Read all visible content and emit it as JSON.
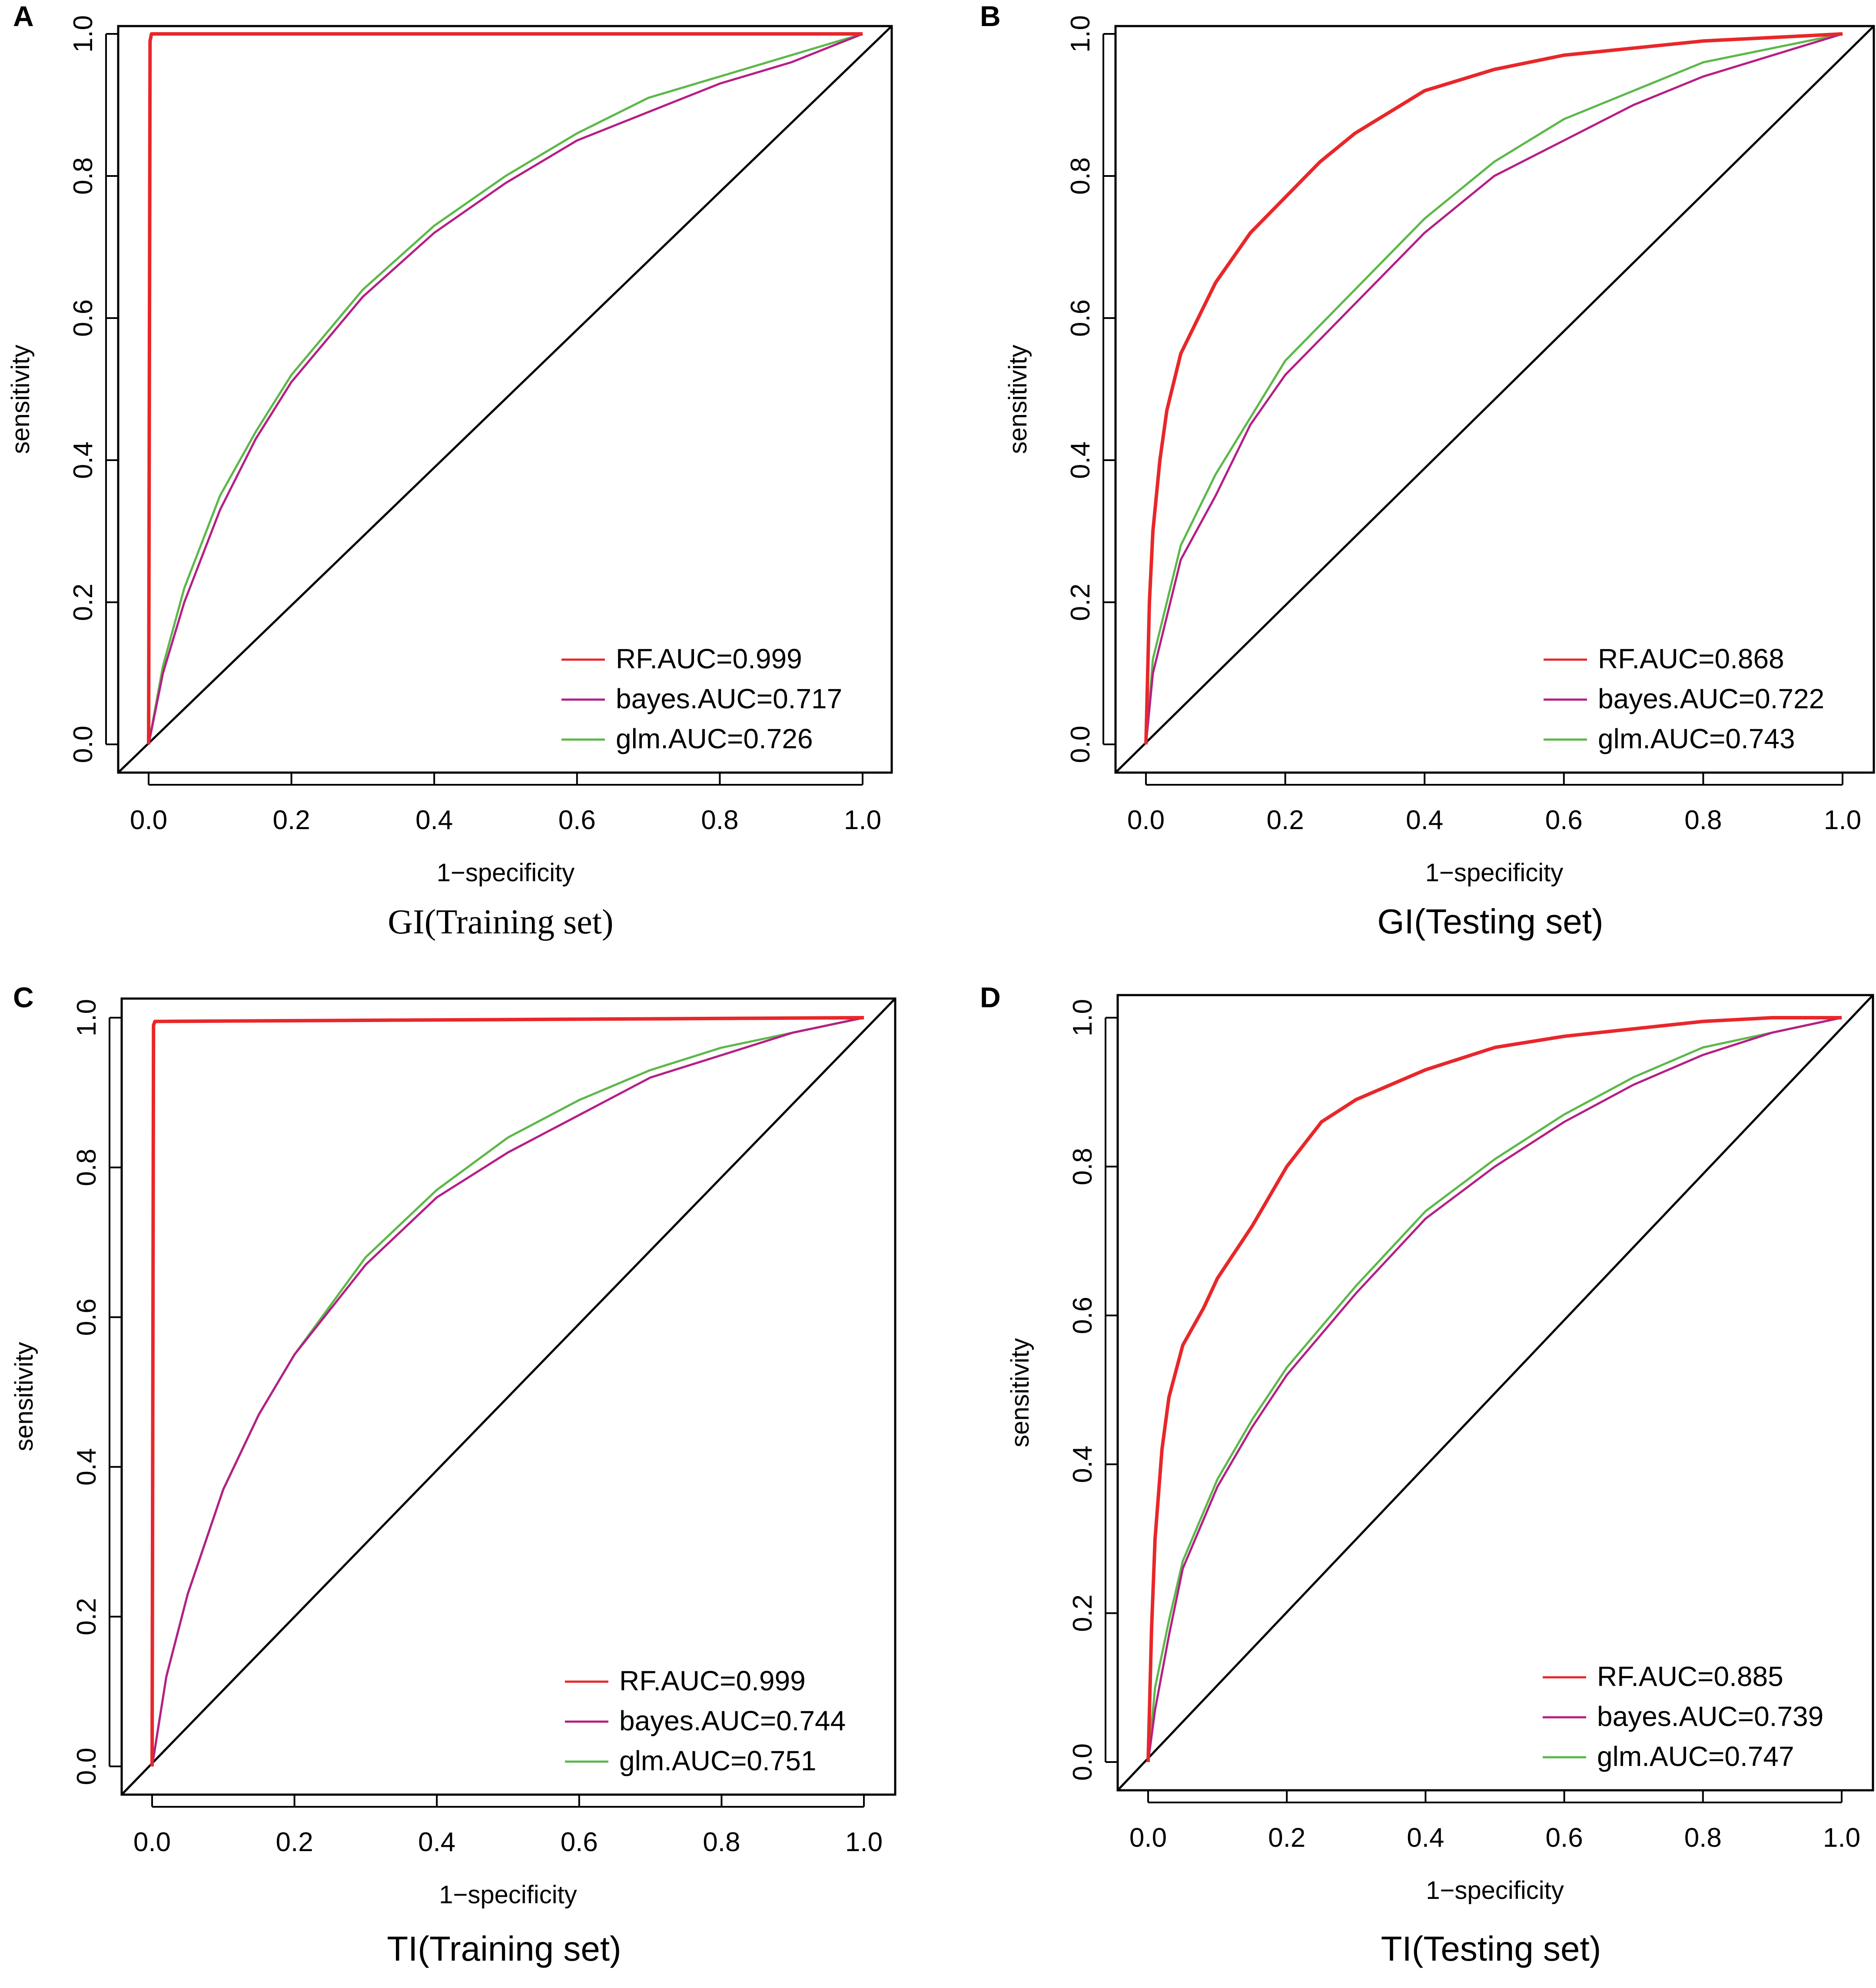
{
  "figure": {
    "colors": {
      "rf": "#e8272a",
      "bayes": "#b51f86",
      "glm": "#5cb84a",
      "axis": "#000000"
    }
  },
  "chart_data": [
    {
      "type": "line",
      "panel_letter": "A",
      "title": "GI(Training set)",
      "xlabel": "1−specificity",
      "ylabel": "sensitivity",
      "xlim": [
        0,
        1
      ],
      "ylim": [
        0,
        1
      ],
      "xticks": [
        "0.0",
        "0.2",
        "0.4",
        "0.6",
        "0.8",
        "1.0"
      ],
      "yticks": [
        "0.0",
        "0.2",
        "0.4",
        "0.6",
        "0.8",
        "1.0"
      ],
      "legend_position": "bottom-right",
      "series": [
        {
          "key": "rf",
          "name": "RF.AUC=0.999",
          "color": "#e8272a",
          "x": [
            0,
            0.002,
            0.004,
            1
          ],
          "y": [
            0,
            0.99,
            1,
            1
          ]
        },
        {
          "key": "bayes",
          "name": "bayes.AUC=0.717",
          "color": "#b51f86",
          "x": [
            0,
            0.02,
            0.05,
            0.1,
            0.15,
            0.2,
            0.3,
            0.4,
            0.5,
            0.6,
            0.7,
            0.8,
            0.9,
            1
          ],
          "y": [
            0,
            0.1,
            0.2,
            0.33,
            0.43,
            0.51,
            0.63,
            0.72,
            0.79,
            0.85,
            0.89,
            0.93,
            0.96,
            1
          ]
        },
        {
          "key": "glm",
          "name": "glm.AUC=0.726",
          "color": "#5cb84a",
          "x": [
            0,
            0.02,
            0.05,
            0.1,
            0.15,
            0.2,
            0.3,
            0.4,
            0.5,
            0.6,
            0.7,
            0.8,
            0.9,
            1
          ],
          "y": [
            0,
            0.11,
            0.22,
            0.35,
            0.44,
            0.52,
            0.64,
            0.73,
            0.8,
            0.86,
            0.91,
            0.94,
            0.97,
            1
          ]
        }
      ]
    },
    {
      "type": "line",
      "panel_letter": "B",
      "title": "GI(Testing set)",
      "xlabel": "1−specificity",
      "ylabel": "sensitivity",
      "xlim": [
        0,
        1
      ],
      "ylim": [
        0,
        1
      ],
      "xticks": [
        "0.0",
        "0.2",
        "0.4",
        "0.6",
        "0.8",
        "1.0"
      ],
      "yticks": [
        "0.0",
        "0.2",
        "0.4",
        "0.6",
        "0.8",
        "1.0"
      ],
      "legend_position": "bottom-right",
      "series": [
        {
          "key": "rf",
          "name": "RF.AUC=0.868",
          "color": "#e8272a",
          "x": [
            0,
            0.005,
            0.01,
            0.02,
            0.03,
            0.05,
            0.08,
            0.1,
            0.15,
            0.2,
            0.25,
            0.3,
            0.4,
            0.5,
            0.6,
            0.7,
            0.8,
            0.9,
            1
          ],
          "y": [
            0,
            0.2,
            0.3,
            0.4,
            0.47,
            0.55,
            0.61,
            0.65,
            0.72,
            0.77,
            0.82,
            0.86,
            0.92,
            0.95,
            0.97,
            0.98,
            0.99,
            0.995,
            1
          ]
        },
        {
          "key": "bayes",
          "name": "bayes.AUC=0.722",
          "color": "#b51f86",
          "x": [
            0,
            0.01,
            0.03,
            0.05,
            0.1,
            0.15,
            0.2,
            0.3,
            0.4,
            0.5,
            0.6,
            0.7,
            0.8,
            0.9,
            1
          ],
          "y": [
            0,
            0.1,
            0.18,
            0.26,
            0.35,
            0.45,
            0.52,
            0.62,
            0.72,
            0.8,
            0.85,
            0.9,
            0.94,
            0.97,
            1
          ]
        },
        {
          "key": "glm",
          "name": "glm.AUC=0.743",
          "color": "#5cb84a",
          "x": [
            0,
            0.01,
            0.03,
            0.05,
            0.1,
            0.15,
            0.2,
            0.3,
            0.4,
            0.5,
            0.6,
            0.7,
            0.8,
            0.9,
            1
          ],
          "y": [
            0,
            0.12,
            0.2,
            0.28,
            0.38,
            0.46,
            0.54,
            0.64,
            0.74,
            0.82,
            0.88,
            0.92,
            0.96,
            0.98,
            1
          ]
        }
      ]
    },
    {
      "type": "line",
      "panel_letter": "C",
      "title": "TI(Training set)",
      "xlabel": "1−specificity",
      "ylabel": "sensitivity",
      "xlim": [
        0,
        1
      ],
      "ylim": [
        0,
        1
      ],
      "xticks": [
        "0.0",
        "0.2",
        "0.4",
        "0.6",
        "0.8",
        "1.0"
      ],
      "yticks": [
        "0.0",
        "0.2",
        "0.4",
        "0.6",
        "0.8",
        "1.0"
      ],
      "legend_position": "bottom-right",
      "series": [
        {
          "key": "rf",
          "name": "RF.AUC=0.999",
          "color": "#e8272a",
          "x": [
            0,
            0.002,
            0.004,
            1
          ],
          "y": [
            0,
            0.99,
            0.995,
            1
          ]
        },
        {
          "key": "bayes",
          "name": "bayes.AUC=0.744",
          "color": "#b51f86",
          "x": [
            0,
            0.02,
            0.05,
            0.1,
            0.15,
            0.2,
            0.3,
            0.4,
            0.5,
            0.6,
            0.7,
            0.8,
            0.9,
            1
          ],
          "y": [
            0,
            0.12,
            0.23,
            0.37,
            0.47,
            0.55,
            0.67,
            0.76,
            0.82,
            0.87,
            0.92,
            0.95,
            0.98,
            1
          ]
        },
        {
          "key": "glm",
          "name": "glm.AUC=0.751",
          "color": "#5cb84a",
          "x": [
            0,
            0.02,
            0.05,
            0.1,
            0.15,
            0.2,
            0.3,
            0.4,
            0.5,
            0.6,
            0.7,
            0.8,
            0.9,
            1
          ],
          "y": [
            0,
            0.12,
            0.23,
            0.37,
            0.47,
            0.55,
            0.68,
            0.77,
            0.84,
            0.89,
            0.93,
            0.96,
            0.98,
            1
          ]
        }
      ]
    },
    {
      "type": "line",
      "panel_letter": "D",
      "title": "TI(Testing set)",
      "xlabel": "1−specificity",
      "ylabel": "sensitivity",
      "xlim": [
        0,
        1
      ],
      "ylim": [
        0,
        1
      ],
      "xticks": [
        "0.0",
        "0.2",
        "0.4",
        "0.6",
        "0.8",
        "1.0"
      ],
      "yticks": [
        "0.0",
        "0.2",
        "0.4",
        "0.6",
        "0.8",
        "1.0"
      ],
      "legend_position": "bottom-right",
      "series": [
        {
          "key": "rf",
          "name": "RF.AUC=0.885",
          "color": "#e8272a",
          "x": [
            0,
            0.005,
            0.01,
            0.02,
            0.03,
            0.05,
            0.08,
            0.1,
            0.15,
            0.2,
            0.25,
            0.3,
            0.4,
            0.5,
            0.6,
            0.7,
            0.8,
            0.9,
            1
          ],
          "y": [
            0,
            0.18,
            0.3,
            0.42,
            0.49,
            0.56,
            0.61,
            0.65,
            0.72,
            0.8,
            0.86,
            0.89,
            0.93,
            0.96,
            0.975,
            0.985,
            0.995,
            1,
            1
          ]
        },
        {
          "key": "bayes",
          "name": "bayes.AUC=0.739",
          "color": "#b51f86",
          "x": [
            0,
            0.01,
            0.03,
            0.05,
            0.1,
            0.15,
            0.2,
            0.3,
            0.4,
            0.5,
            0.6,
            0.7,
            0.8,
            0.9,
            1
          ],
          "y": [
            0,
            0.07,
            0.17,
            0.26,
            0.37,
            0.45,
            0.52,
            0.63,
            0.73,
            0.8,
            0.86,
            0.91,
            0.95,
            0.98,
            1
          ]
        },
        {
          "key": "glm",
          "name": "glm.AUC=0.747",
          "color": "#5cb84a",
          "x": [
            0,
            0.01,
            0.03,
            0.05,
            0.1,
            0.15,
            0.2,
            0.3,
            0.4,
            0.5,
            0.6,
            0.7,
            0.8,
            0.9,
            1
          ],
          "y": [
            0,
            0.1,
            0.19,
            0.27,
            0.38,
            0.46,
            0.53,
            0.64,
            0.74,
            0.81,
            0.87,
            0.92,
            0.96,
            0.98,
            1
          ]
        }
      ]
    }
  ]
}
